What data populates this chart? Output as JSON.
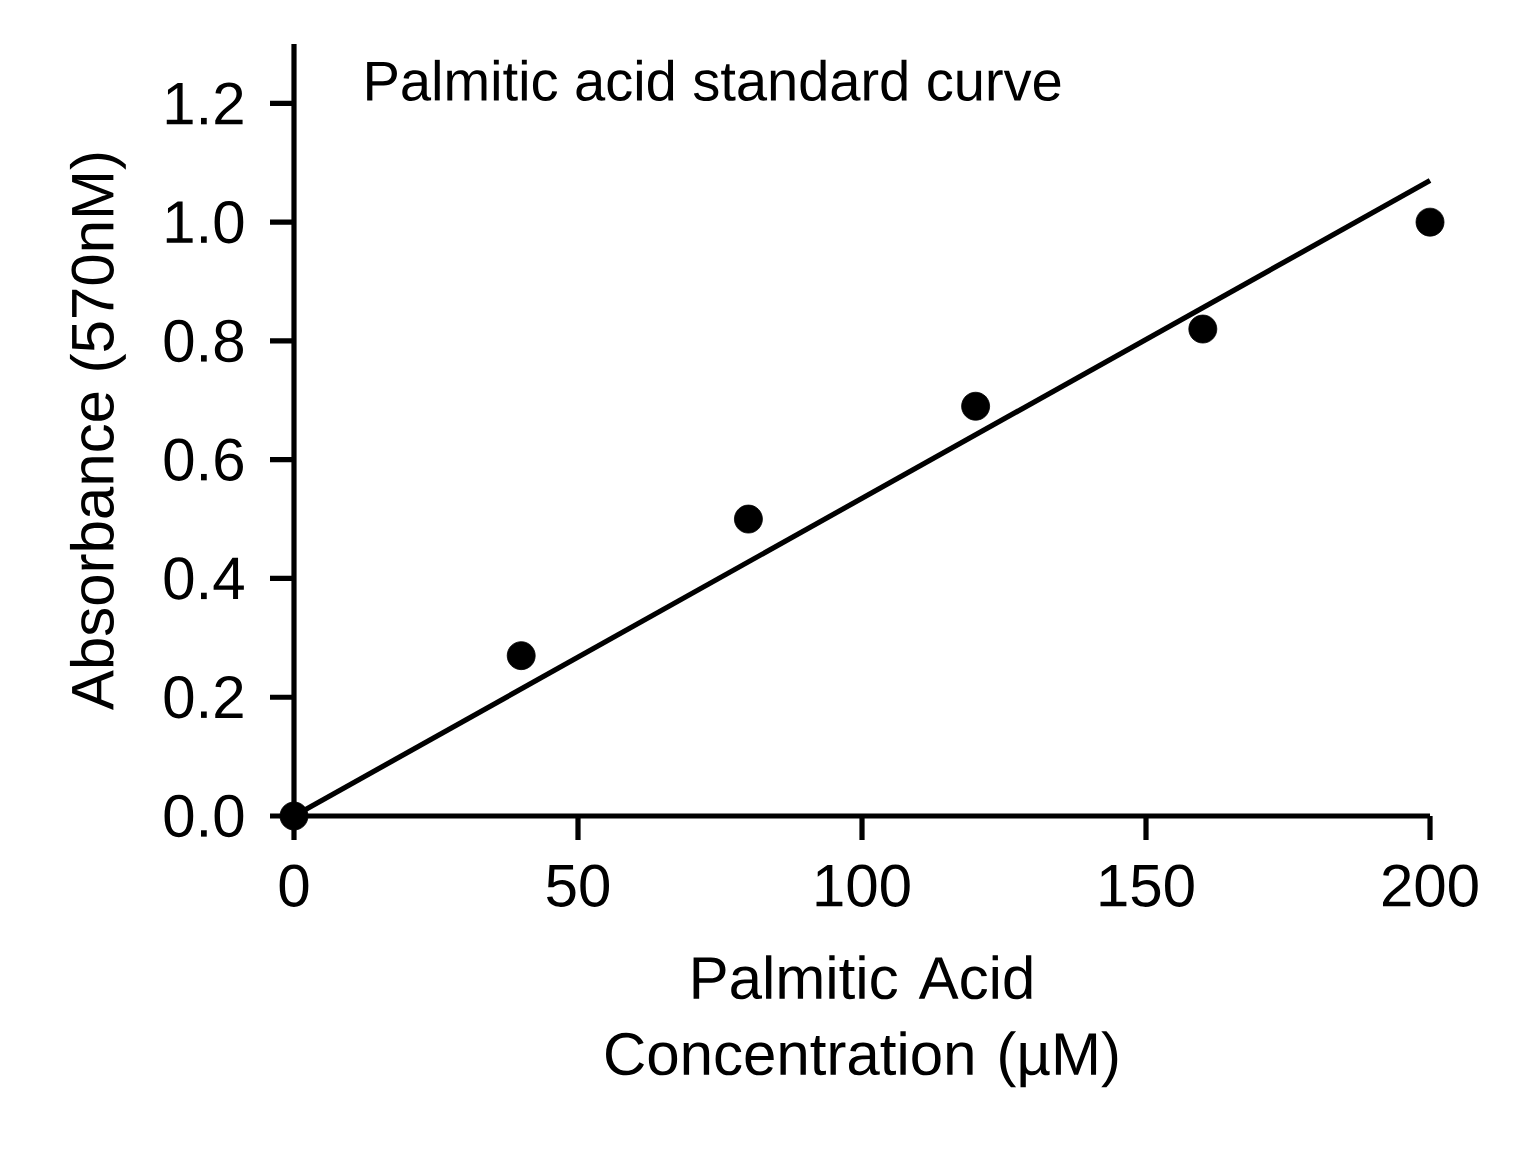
{
  "chart_data": {
    "type": "scatter",
    "title": "Palmitic acid standard curve",
    "xlabel": "Palmitic Acid Concentration (µM)",
    "ylabel": "Absorbance (570nM)",
    "series": [
      {
        "type": "scatter",
        "color": "#000000",
        "marker": "circle",
        "x": [
          0,
          40,
          80,
          120,
          160,
          200
        ],
        "values": [
          0,
          0.27,
          0.5,
          0.69,
          0.82,
          1.0
        ]
      },
      {
        "type": "line",
        "color": "#000000",
        "marker": "none",
        "line_style": "solid",
        "x": [
          0,
          200
        ],
        "values": [
          0,
          1.07
        ]
      }
    ],
    "xlim": [
      0,
      200
    ],
    "ylim": [
      0,
      1.3
    ],
    "xticks": [
      0,
      50,
      100,
      150,
      200
    ],
    "yticks": [
      {
        "value": 0,
        "label": "0.0"
      },
      {
        "value": 0.2,
        "label": "0.2"
      },
      {
        "value": 0.4,
        "label": "0.4"
      },
      {
        "value": 0.6,
        "label": "0.6"
      },
      {
        "value": 0.8,
        "label": "0.8"
      },
      {
        "value": 1.0,
        "label": "1.0"
      },
      {
        "value": 1.2,
        "label": "1.2"
      }
    ]
  }
}
